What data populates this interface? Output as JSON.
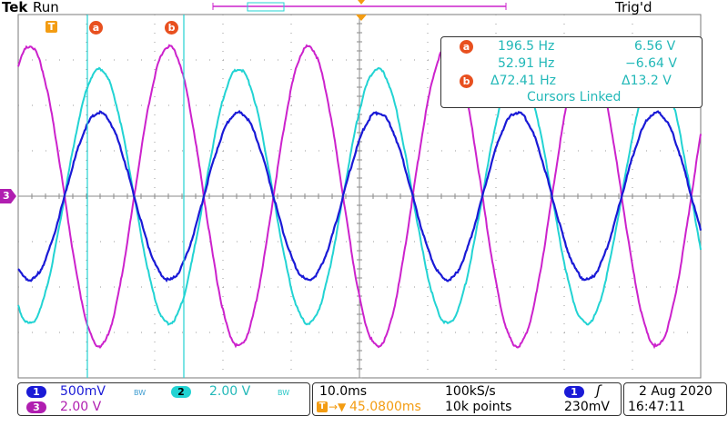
{
  "header": {
    "brand": "Tek",
    "run_state": "Run",
    "trigger_state": "Trig'd"
  },
  "markers": {
    "trigger_marker": "T",
    "cursor_a": "a",
    "cursor_b": "b",
    "channel3_marker": "3"
  },
  "cursor_readout": {
    "a_label": "a",
    "a_freq": "196.5 Hz",
    "a_volt": "6.56 V",
    "b_freq": "52.91 Hz",
    "b_volt": "−6.64 V",
    "b_label": "b",
    "delta_freq": "Δ72.41 Hz",
    "delta_volt": "Δ13.2 V",
    "linked": "Cursors Linked"
  },
  "channels": {
    "ch1_num": "1",
    "ch1_scale": "500mV",
    "ch1_bw": "BW",
    "ch2_num": "2",
    "ch2_scale": "2.00 V",
    "ch2_bw": "BW",
    "ch3_num": "3",
    "ch3_scale": "2.00 V"
  },
  "timebase": {
    "time_per_div": "10.0ms",
    "sample_rate": "100kS/s",
    "trigger_pos": "45.0800ms",
    "record_length": "10k points"
  },
  "trigger": {
    "source": "1",
    "slope_icon": "rising-edge-icon",
    "level": "230mV"
  },
  "datetime": {
    "date": "2 Aug 2020",
    "time": "16:47:11"
  },
  "colors": {
    "ch1": "#1a1ad6",
    "ch2": "#22d3d3",
    "ch3": "#cc22cc",
    "grid": "#9a9a9a",
    "trigger": "#f39c12",
    "cursor": "#e8501f"
  },
  "chart_data": {
    "type": "line",
    "grid": true,
    "series": [
      {
        "name": "1",
        "frequency_hz": 49.0,
        "amplitude_volts": 0.92
      },
      {
        "name": "2",
        "frequency_hz": 49.0,
        "amplitude_volts": 5.6
      },
      {
        "name": "3",
        "frequency_hz": 49.0,
        "amplitude_volts": 6.6
      }
    ],
    "cursors": [
      "a",
      "b"
    ]
  }
}
